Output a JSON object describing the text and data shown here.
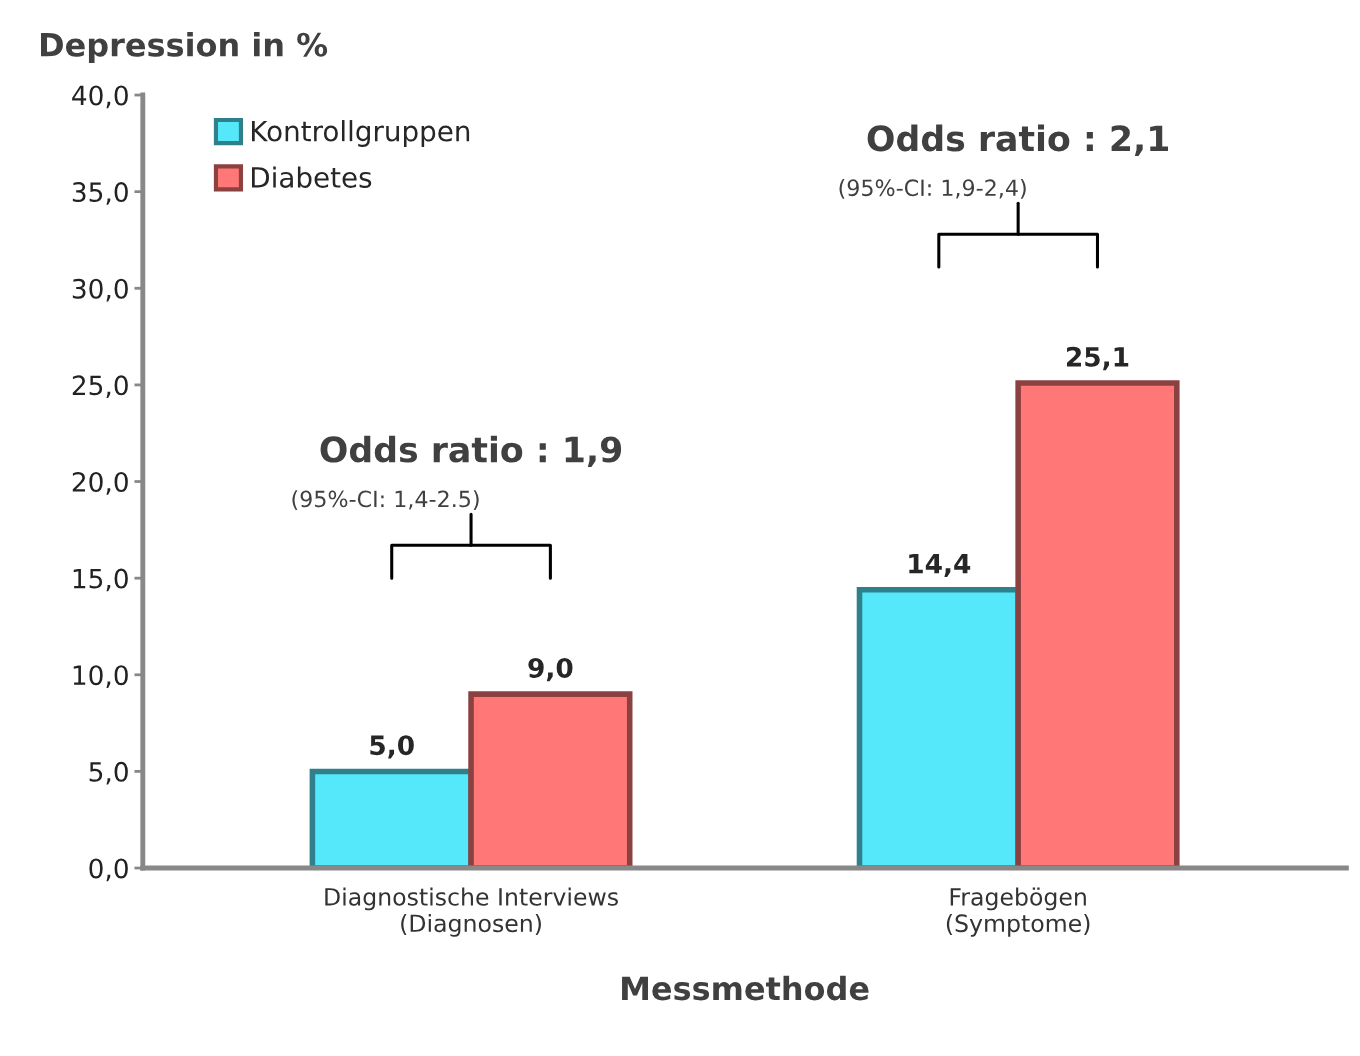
{
  "chart_data": {
    "type": "bar",
    "title": "Depression in %",
    "xlabel": "Messmethode",
    "categories": [
      "Diagnostische Interviews\n(Diagnosen)",
      "Fragebögen\n(Symptome)"
    ],
    "series": [
      {
        "name": "Kontrollgruppen",
        "color": "#55e8fa",
        "values": [
          5.0,
          14.4
        ],
        "value_labels": [
          "5,0",
          "14,4"
        ]
      },
      {
        "name": "Diabetes",
        "color": "#ff7777",
        "values": [
          9.0,
          25.1
        ],
        "value_labels": [
          "9,0",
          "25,1"
        ]
      }
    ],
    "ylim": [
      0,
      40
    ],
    "yticks": [
      {
        "value": 0,
        "label": "0,0"
      },
      {
        "value": 5,
        "label": "5,0"
      },
      {
        "value": 10,
        "label": "10,0"
      },
      {
        "value": 15,
        "label": "15,0"
      },
      {
        "value": 20,
        "label": "20,0"
      },
      {
        "value": 25,
        "label": "25,0"
      },
      {
        "value": 30,
        "label": "30,0"
      },
      {
        "value": 35,
        "label": "35,0"
      },
      {
        "value": 40,
        "label": "40,0"
      }
    ],
    "annotations": [
      "Odds ratio : 1,9",
      "(95%-CI: 1,4-2.5)",
      "Odds ratio : 2,1",
      "(95%-CI: 1,9-2,4)"
    ],
    "legend": "top left",
    "grid": false
  }
}
